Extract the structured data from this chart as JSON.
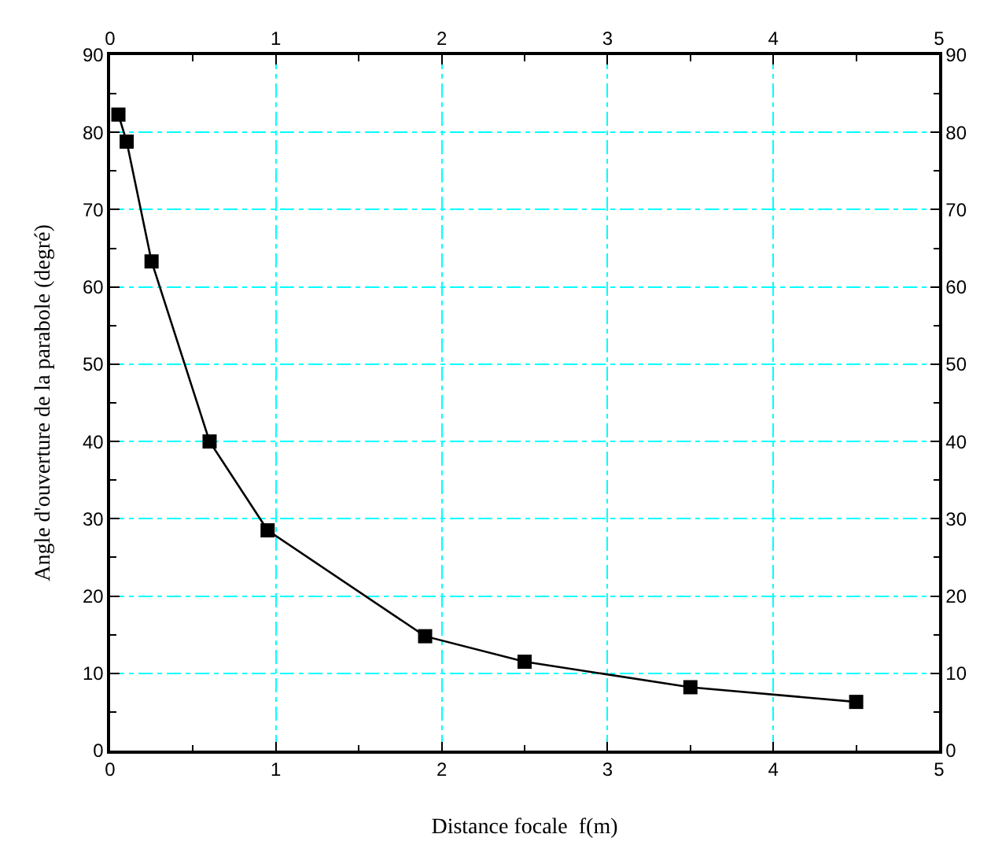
{
  "chart_data": {
    "type": "line",
    "xlabel": "Distance focale  f(m)",
    "ylabel": "Angle d'ouverture de la parabole (degré)",
    "x": [
      0.05,
      0.1,
      0.25,
      0.6,
      0.95,
      1.9,
      2.5,
      3.5,
      4.5
    ],
    "series": [
      {
        "color": "#000000",
        "values": [
          82.3,
          78.8,
          63.3,
          40,
          28.5,
          14.8,
          11.5,
          8.2,
          6.3
        ]
      }
    ],
    "xlim": [
      0,
      5
    ],
    "xticks": [
      0,
      1,
      2,
      3,
      4,
      5
    ],
    "ylim": [
      0,
      90
    ],
    "yticks": [
      0,
      10,
      20,
      30,
      40,
      50,
      60,
      70,
      80,
      90
    ],
    "x2lim": [
      0,
      5
    ],
    "x2ticks": [
      0,
      1,
      2,
      3,
      4,
      5
    ],
    "y2lim": [
      0,
      90
    ],
    "y2ticks": [
      0,
      10,
      20,
      30,
      40,
      50,
      60,
      70,
      80,
      90
    ],
    "grid": true,
    "marker": "square",
    "line_style": "solid",
    "legend": false
  }
}
